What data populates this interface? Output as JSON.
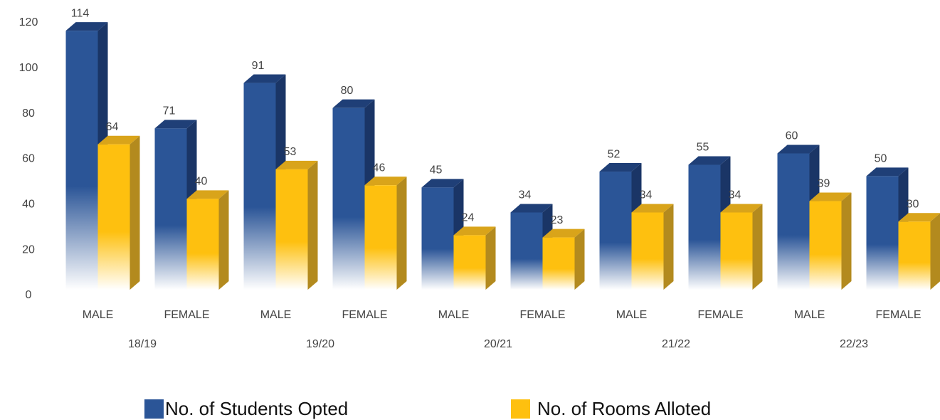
{
  "chart_data": {
    "type": "bar3d",
    "categories": [
      "MALE",
      "FEMALE",
      "MALE",
      "FEMALE",
      "MALE",
      "FEMALE",
      "MALE",
      "FEMALE",
      "MALE",
      "FEMALE"
    ],
    "groups": [
      "18/19",
      "19/20",
      "20/21",
      "21/22",
      "22/23"
    ],
    "series": [
      {
        "name": "No. of Students Opted",
        "color": "#2b5597",
        "values": [
          114,
          71,
          91,
          80,
          45,
          34,
          52,
          55,
          60,
          50
        ]
      },
      {
        "name": "No. of Rooms Alloted",
        "color": "#fec00f",
        "values": [
          64,
          40,
          53,
          46,
          24,
          23,
          34,
          34,
          39,
          30
        ]
      }
    ],
    "ylim": [
      0,
      120
    ],
    "yticks": [
      0,
      20,
      40,
      60,
      80,
      100,
      120
    ],
    "grid": false
  }
}
